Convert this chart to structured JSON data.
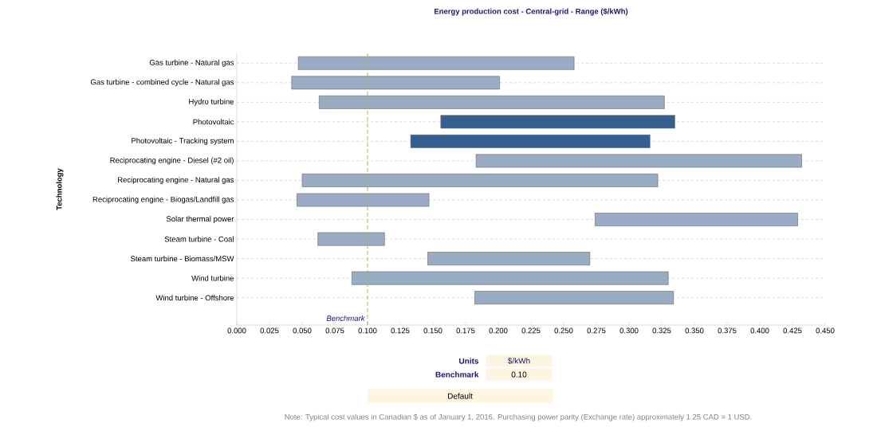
{
  "chart_data": {
    "type": "bar",
    "orientation": "horizontal",
    "title": "Energy production cost - Central-grid - Range  ($/kWh)",
    "ylabel": "Technology",
    "categories": [
      "Gas turbine - Natural gas",
      "Gas turbine - combined cycle - Natural gas",
      "Hydro turbine",
      "Photovoltaic",
      "Photovoltaic - Tracking system",
      "Reciprocating engine - Diesel (#2 oil)",
      "Reciprocating engine - Natural gas",
      "Reciprocating engine - Biogas/Landfill gas",
      "Solar thermal power",
      "Steam turbine - Coal",
      "Steam turbine - Biomass/MSW",
      "Wind turbine",
      "Wind turbine - Offshore"
    ],
    "base": [
      0.047,
      0.042,
      0.063,
      0.156,
      0.133,
      0.183,
      0.05,
      0.046,
      0.274,
      0.062,
      0.146,
      0.088,
      0.182
    ],
    "values": [
      0.211,
      0.159,
      0.264,
      0.179,
      0.183,
      0.249,
      0.272,
      0.101,
      0.155,
      0.051,
      0.124,
      0.242,
      0.152
    ],
    "colors": [
      "#9aabc4",
      "#9aabc4",
      "#9aabc4",
      "#365f91",
      "#365f91",
      "#9aabc4",
      "#9aabc4",
      "#9aabc4",
      "#9aabc4",
      "#9aabc4",
      "#9aabc4",
      "#9aabc4",
      "#9aabc4"
    ],
    "xlim": [
      0,
      0.45
    ],
    "xticks": [
      {
        "value": 0,
        "label": "0.000"
      },
      {
        "value": 0.025,
        "label": "0.025"
      },
      {
        "value": 0.05,
        "label": "0.050"
      },
      {
        "value": 0.075,
        "label": "0.075"
      },
      {
        "value": 0.1,
        "label": "0.100"
      },
      {
        "value": 0.125,
        "label": "0.125"
      },
      {
        "value": 0.15,
        "label": "0.150"
      },
      {
        "value": 0.175,
        "label": "0.175"
      },
      {
        "value": 0.2,
        "label": "0.200"
      },
      {
        "value": 0.225,
        "label": "0.225"
      },
      {
        "value": 0.25,
        "label": "0.250"
      },
      {
        "value": 0.275,
        "label": "0.275"
      },
      {
        "value": 0.3,
        "label": "0.300"
      },
      {
        "value": 0.325,
        "label": "0.325"
      },
      {
        "value": 0.35,
        "label": "0.350"
      },
      {
        "value": 0.375,
        "label": "0.375"
      },
      {
        "value": 0.4,
        "label": "0.400"
      },
      {
        "value": 0.425,
        "label": "0.425"
      },
      {
        "value": 0.45,
        "label": "0.450"
      }
    ],
    "grid": "y",
    "ref_lines": [
      {
        "axis": "x",
        "value": 0.1,
        "label": "Benchmark",
        "color": "#8dc63f",
        "line_style": "dashed"
      }
    ],
    "annotations": [
      "Units",
      "$/kWh",
      "Benchmark",
      "0.10",
      "Default",
      "Note: Typical cost values in Canadian $ as of January 1, 2016. Purchasing power parity (Exchange rate) approximately 1.25 CAD = 1 USD."
    ]
  }
}
